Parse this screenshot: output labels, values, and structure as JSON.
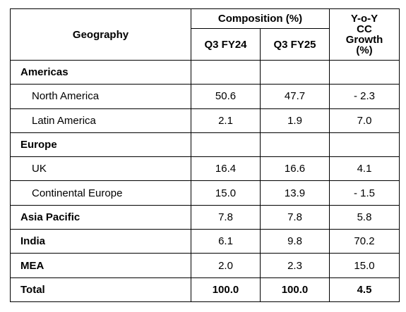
{
  "table": {
    "header": {
      "geography": "Geography",
      "composition": "Composition (%)",
      "periods": [
        "Q3 FY24",
        "Q3 FY25"
      ],
      "growth": [
        "Y-o-Y",
        "CC",
        "Growth",
        "(%)"
      ]
    },
    "sections": [
      {
        "label": "Americas",
        "rows": [
          {
            "label": "North America",
            "values": [
              "50.6",
              "47.7",
              "- 2.3"
            ]
          },
          {
            "label": "Latin America",
            "values": [
              "2.1",
              "1.9",
              "7.0"
            ]
          }
        ]
      },
      {
        "label": "Europe",
        "rows": [
          {
            "label": "UK",
            "values": [
              "16.4",
              "16.6",
              "4.1"
            ]
          },
          {
            "label": "Continental Europe",
            "values": [
              "15.0",
              "13.9",
              "- 1.5"
            ]
          }
        ]
      },
      {
        "label": "Asia Pacific",
        "values": [
          "7.8",
          "7.8",
          "5.8"
        ]
      },
      {
        "label": "India",
        "values": [
          "6.1",
          "9.8",
          "70.2"
        ]
      },
      {
        "label": "MEA",
        "values": [
          "2.0",
          "2.3",
          "15.0"
        ]
      }
    ],
    "total": {
      "label": "Total",
      "values": [
        "100.0",
        "100.0",
        "4.5"
      ]
    }
  }
}
